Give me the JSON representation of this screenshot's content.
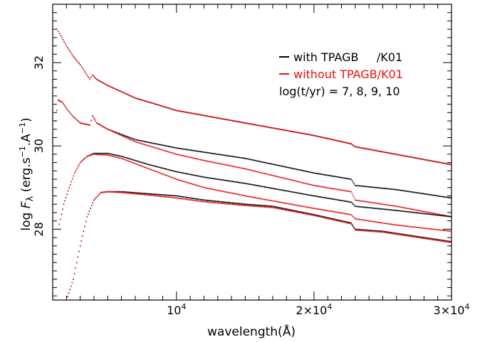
{
  "chart_data": {
    "type": "scatter",
    "title": "",
    "xlabel": "wavelength(Å)",
    "ylabel": "log F_λ (erg.s⁻¹.A⁻¹)",
    "ylabel_parts": {
      "prefix": "log ",
      "symbol": "F",
      "subscript": "λ",
      "units_open": " (erg.s",
      "units_sup1": "−1",
      "units_mid": ".A",
      "units_sup2": "−1",
      "units_close": ")"
    },
    "xlim": [
      1000,
      30000
    ],
    "ylim": [
      26.3,
      33.4
    ],
    "grid": false,
    "xticks": [
      {
        "value": 10000,
        "base": "10",
        "exp": "4"
      },
      {
        "value": 20000,
        "base": "2×10",
        "exp": "4"
      },
      {
        "value": 30000,
        "base": "3×10",
        "exp": "4"
      }
    ],
    "yticks": [
      {
        "value": 28,
        "label": "28"
      },
      {
        "value": 30,
        "label": "30"
      },
      {
        "value": 32,
        "label": "32"
      }
    ],
    "legend": {
      "placement": "top-right",
      "entries": [
        {
          "label": "with TPAGB     /K01",
          "color": "#000000"
        },
        {
          "label": "without TPAGB/K01",
          "color": "#e8110f"
        }
      ],
      "note": "log(t/yr) = 7, 8, 9, 10"
    },
    "series": [
      {
        "color": "#000000",
        "group": "with TPAGB",
        "age_log": 7,
        "x": [
          1300,
          1500,
          2000,
          2500,
          3000,
          3700,
          3900,
          4200,
          5000,
          7000,
          10000,
          15000,
          20000,
          22700,
          23000,
          30000
        ],
        "y": [
          32.8,
          32.7,
          32.4,
          32.15,
          31.95,
          31.6,
          31.7,
          31.6,
          31.45,
          31.15,
          30.85,
          30.55,
          30.25,
          30.05,
          29.98,
          29.55
        ]
      },
      {
        "color": "#e8110f",
        "group": "without TPAGB",
        "age_log": 7,
        "x": [
          1300,
          1500,
          2000,
          2500,
          3000,
          3700,
          3900,
          4200,
          5000,
          7000,
          10000,
          15000,
          20000,
          22700,
          23000,
          30000
        ],
        "y": [
          32.8,
          32.7,
          32.4,
          32.15,
          31.95,
          31.6,
          31.7,
          31.6,
          31.45,
          31.15,
          30.85,
          30.55,
          30.25,
          30.05,
          29.98,
          29.55
        ]
      },
      {
        "color": "#000000",
        "group": "with TPAGB",
        "age_log": 8,
        "x": [
          1200,
          1400,
          1700,
          2000,
          2500,
          3000,
          3700,
          3900,
          4200,
          5000,
          7000,
          10000,
          12000,
          15000,
          20000,
          22700,
          23000,
          26000,
          30000
        ],
        "y": [
          30.6,
          31.1,
          31.05,
          30.9,
          30.7,
          30.55,
          30.5,
          30.72,
          30.55,
          30.4,
          30.15,
          29.95,
          29.85,
          29.7,
          29.35,
          29.2,
          29.05,
          28.95,
          28.75
        ]
      },
      {
        "color": "#e8110f",
        "group": "without TPAGB",
        "age_log": 8,
        "x": [
          1200,
          1400,
          1700,
          2000,
          2500,
          3000,
          3700,
          3900,
          4200,
          5000,
          7000,
          10000,
          12000,
          15000,
          20000,
          22700,
          23000,
          26000,
          30000
        ],
        "y": [
          30.6,
          31.1,
          31.05,
          30.9,
          30.7,
          30.55,
          30.5,
          30.72,
          30.55,
          30.4,
          30.1,
          29.8,
          29.65,
          29.45,
          29.05,
          28.9,
          28.7,
          28.55,
          28.3
        ]
      },
      {
        "color": "#000000",
        "group": "with TPAGB",
        "age_log": 9,
        "x": [
          1400,
          1800,
          2200,
          2600,
          3000,
          3500,
          4000,
          5000,
          6000,
          8000,
          10000,
          12000,
          15000,
          20000,
          22700,
          23000,
          26000,
          30000
        ],
        "y": [
          28.0,
          28.6,
          29.0,
          29.35,
          29.6,
          29.75,
          29.82,
          29.82,
          29.75,
          29.55,
          29.38,
          29.25,
          29.1,
          28.8,
          28.65,
          28.55,
          28.45,
          28.3
        ]
      },
      {
        "color": "#e8110f",
        "group": "without TPAGB",
        "age_log": 9,
        "x": [
          1400,
          1800,
          2200,
          2600,
          3000,
          3500,
          4000,
          5000,
          6000,
          8000,
          10000,
          12000,
          15000,
          20000,
          22700,
          23000,
          26000,
          30000
        ],
        "y": [
          28.0,
          28.6,
          29.0,
          29.35,
          29.6,
          29.75,
          29.8,
          29.78,
          29.7,
          29.45,
          29.2,
          29.0,
          28.8,
          28.5,
          28.35,
          28.25,
          28.1,
          27.95
        ]
      },
      {
        "color": "#000000",
        "group": "with TPAGB",
        "age_log": 10,
        "x": [
          2000,
          2500,
          3000,
          3500,
          4000,
          4500,
          5000,
          6000,
          8000,
          10000,
          12000,
          15000,
          17000,
          20000,
          22700,
          23000,
          25000,
          30000
        ],
        "y": [
          26.3,
          26.8,
          27.6,
          28.3,
          28.7,
          28.88,
          28.9,
          28.9,
          28.85,
          28.8,
          28.7,
          28.6,
          28.55,
          28.35,
          28.15,
          28.0,
          27.95,
          27.7
        ]
      },
      {
        "color": "#e8110f",
        "group": "without TPAGB",
        "age_log": 10,
        "x": [
          2000,
          2500,
          3000,
          3500,
          4000,
          4500,
          5000,
          6000,
          8000,
          10000,
          12000,
          15000,
          17000,
          20000,
          22700,
          23000,
          25000,
          30000
        ],
        "y": [
          26.3,
          26.8,
          27.6,
          28.3,
          28.7,
          28.88,
          28.9,
          28.88,
          28.82,
          28.75,
          28.66,
          28.57,
          28.52,
          28.33,
          28.13,
          27.98,
          27.93,
          27.68
        ]
      }
    ]
  }
}
